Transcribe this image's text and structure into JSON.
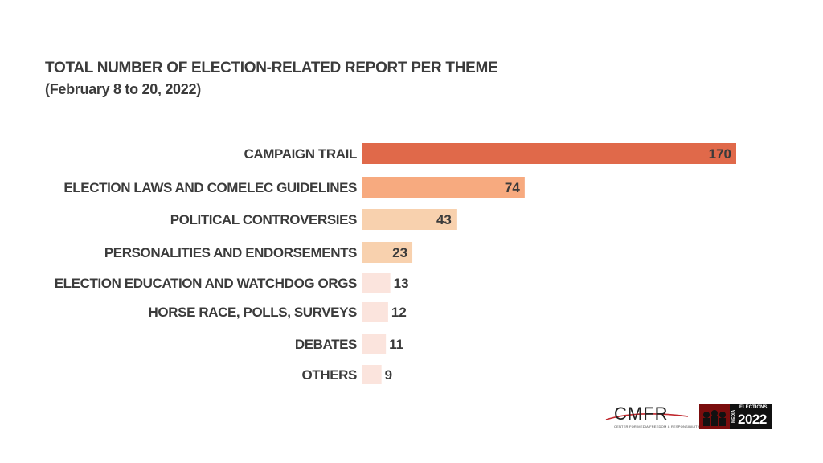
{
  "chart_data": {
    "type": "bar",
    "orientation": "horizontal",
    "title": "TOTAL NUMBER OF ELECTION-RELATED REPORT PER THEME",
    "subtitle": "(February 8 to 20, 2022)",
    "categories": [
      "CAMPAIGN TRAIL",
      "ELECTION LAWS AND COMELEC GUIDELINES",
      "POLITICAL CONTROVERSIES",
      "PERSONALITIES AND ENDORSEMENTS",
      "ELECTION EDUCATION AND WATCHDOG ORGS",
      "HORSE RACE, POLLS, SURVEYS",
      "DEBATES",
      "OTHERS"
    ],
    "values": [
      170,
      74,
      43,
      23,
      13,
      12,
      11,
      9
    ],
    "colors": [
      "#e0694a",
      "#f7aa7f",
      "#f8d1ae",
      "#f8d1ae",
      "#fbe4dd",
      "#fbe4dd",
      "#fbe4dd",
      "#fbe4dd"
    ],
    "xlim": [
      0,
      170
    ],
    "grid": false,
    "legend": "none"
  },
  "logos": {
    "cmfr": "CMFR",
    "cmfr_full": "CENTER FOR MEDIA FREEDOM & RESPONSIBILITY",
    "media_label": "MEDIA",
    "elections_label": "ELECTIONS",
    "year": "2022"
  }
}
